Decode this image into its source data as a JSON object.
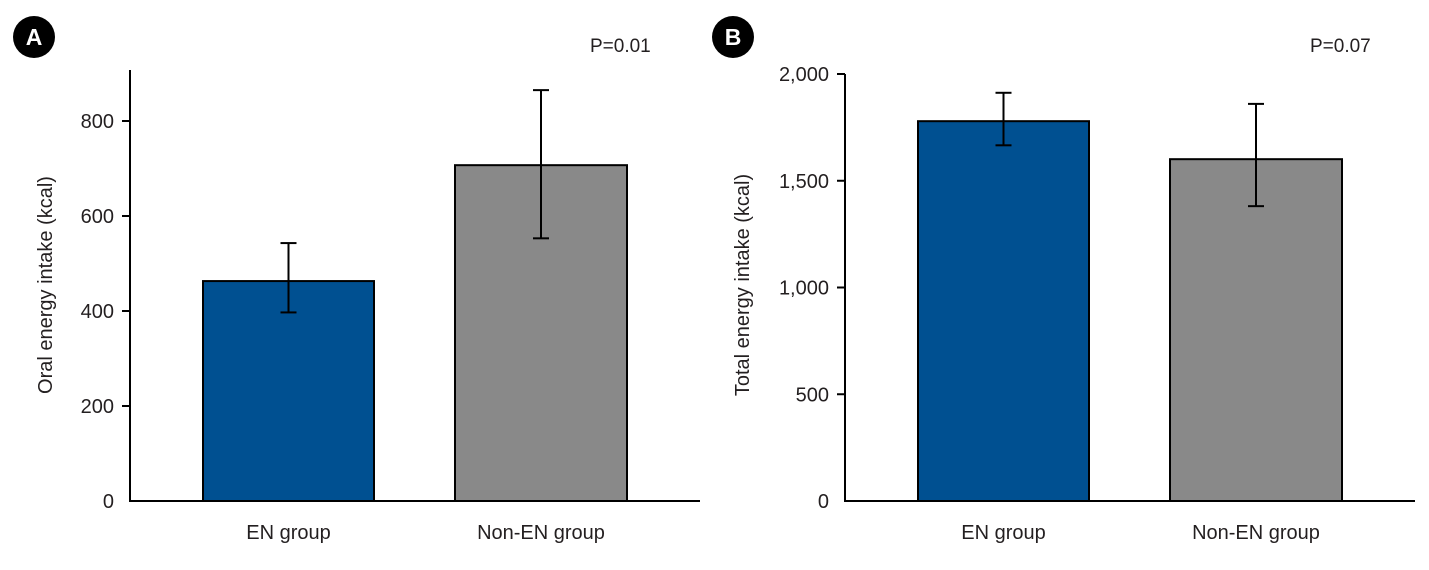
{
  "chart_data": [
    {
      "type": "bar",
      "panel_label": "A",
      "annotation": "P=0.01",
      "categories": [
        "EN group",
        "Non-EN group"
      ],
      "values": [
        463,
        707
      ],
      "error_bars": [
        [
          397,
          543
        ],
        [
          553,
          865
        ]
      ],
      "ylabel": "Oral energy intake (kcal)",
      "xlabel": "",
      "ylim": [
        0,
        900
      ],
      "yticks": [
        0,
        200,
        400,
        600,
        800
      ],
      "ytick_labels": [
        "0",
        "200",
        "400",
        "600",
        "800"
      ],
      "colors": [
        "#005091",
        "#898989"
      ],
      "grid": false
    },
    {
      "type": "bar",
      "panel_label": "B",
      "annotation": "P=0.07",
      "categories": [
        "EN group",
        "Non-EN group"
      ],
      "values": [
        1779,
        1601
      ],
      "error_bars": [
        [
          1666,
          1912
        ],
        [
          1381,
          1860
        ]
      ],
      "ylabel": "Total energy intake (kcal)",
      "xlabel": "",
      "ylim": [
        0,
        2000
      ],
      "yticks": [
        0,
        500,
        1000,
        1500,
        2000
      ],
      "ytick_labels": [
        "0",
        "500",
        "1,000",
        "1,500",
        "2,000"
      ],
      "colors": [
        "#005091",
        "#898989"
      ],
      "grid": false
    }
  ]
}
